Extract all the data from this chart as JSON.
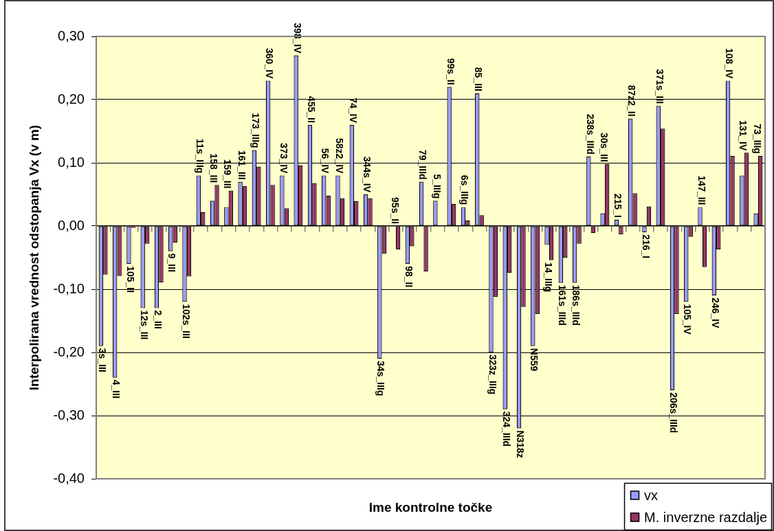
{
  "chart_data": {
    "type": "bar",
    "xlabel": "Ime kontrolne točke",
    "ylabel": "Interpolirana vrednost odstopanja Vx (v m)",
    "categories": [
      "3s_III",
      "4_III",
      "105_II",
      "12s_III",
      "2_III",
      "9_III",
      "102s_III",
      "11s_IIIg",
      "158_III",
      "159_III",
      "161_III",
      "173_IIIg",
      "360_IV",
      "373_IV",
      "398_IV",
      "455_II",
      "56_IV",
      "58z2_IV",
      "74_IV",
      "344s_IV",
      "34s_IIIg",
      "95s_II",
      "98_II",
      "79_IIId",
      "5_IIIg",
      "99s_II",
      "6s_IIIg",
      "85_III",
      "323z_IIIg",
      "324_IIId",
      "N318z",
      "N559",
      "14_IIIg",
      "161s_IIId",
      "186s_IIId",
      "238s_IIId",
      "30s_III",
      "215_I",
      "87z2_II",
      "216_I",
      "371s_III",
      "206s_IIId",
      "105_IV",
      "147_III",
      "246_IV",
      "108_IV",
      "131_IV",
      "73_IIIg"
    ],
    "series": [
      {
        "name": "vx",
        "color": "#9999ff",
        "values": [
          -0.19,
          -0.24,
          -0.06,
          -0.13,
          -0.13,
          -0.04,
          -0.12,
          0.08,
          0.04,
          0.03,
          0.07,
          0.12,
          0.23,
          0.08,
          0.27,
          0.16,
          0.08,
          0.08,
          0.16,
          0.05,
          -0.21,
          0,
          -0.06,
          0.07,
          0.04,
          0.22,
          0.03,
          0.21,
          -0.2,
          -0.29,
          -0.32,
          -0.19,
          -0.03,
          -0.09,
          -0.09,
          0.11,
          0.02,
          0.01,
          0.17,
          -0.01,
          0.19,
          -0.26,
          -0.12,
          0.03,
          -0.11,
          0.23,
          0.08,
          0.02
        ]
      },
      {
        "name": "M. inverzne razdalje",
        "color": "#993366",
        "values": [
          -0.077,
          -0.079,
          -0.003,
          -0.028,
          -0.089,
          -0.026,
          -0.08,
          0.022,
          0.065,
          0.056,
          0.063,
          0.094,
          0.065,
          0.028,
          0.096,
          0.068,
          0.048,
          0.044,
          0.039,
          0.044,
          -0.044,
          -0.037,
          -0.032,
          -0.072,
          0,
          0.035,
          0.009,
          0.017,
          -0.112,
          -0.074,
          -0.128,
          -0.139,
          -0.054,
          -0.05,
          -0.028,
          -0.011,
          0.098,
          -0.013,
          0.052,
          0.031,
          0.154,
          -0.139,
          -0.017,
          -0.065,
          -0.037,
          0.111,
          0.116,
          0.111
        ]
      }
    ],
    "ylim": [
      -0.4,
      0.3
    ],
    "yticks": [
      {
        "value": -0.4,
        "label": "-0,40"
      },
      {
        "value": -0.3,
        "label": "-0,30"
      },
      {
        "value": -0.2,
        "label": "-0,20"
      },
      {
        "value": -0.1,
        "label": "-0,10"
      },
      {
        "value": 0,
        "label": "0,00"
      },
      {
        "value": 0.1,
        "label": "0,10"
      },
      {
        "value": 0.2,
        "label": "0,20"
      },
      {
        "value": 0.3,
        "label": "0,30"
      }
    ],
    "grid": "y",
    "legend": "bottom right",
    "tick_labels": "y"
  }
}
